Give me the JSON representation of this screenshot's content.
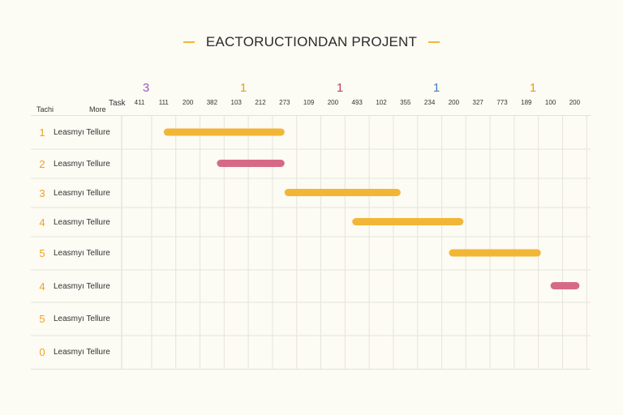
{
  "title": "EACTORUCTIONDAN PROJENT",
  "header": {
    "task": "Tachi",
    "more": "More",
    "task2": "Task"
  },
  "markers": [
    {
      "text": "3",
      "color": "#9a58c8"
    },
    {
      "text": "1",
      "color": "#e0a21a"
    },
    {
      "text": "1",
      "color": "#b8436d"
    },
    {
      "text": "1",
      "color": "#3f7fc0"
    },
    {
      "text": "1",
      "color": "#e0a21a"
    }
  ],
  "ticks": [
    "411",
    "111",
    "200",
    "382",
    "103",
    "212",
    "273",
    "109",
    "200",
    "493",
    "102",
    "355",
    "234",
    "200",
    "327",
    "773",
    "189",
    "100",
    "200"
  ],
  "colors": {
    "gold": "#f2b636",
    "pink": "#d66a86",
    "grid": "#e6e4da"
  },
  "chart_data": {
    "type": "bar",
    "title": "EACTORUCTIONDAN PROJENT",
    "x_tick_labels": [
      "411",
      "111",
      "200",
      "382",
      "103",
      "212",
      "273",
      "109",
      "200",
      "493",
      "102",
      "355",
      "234",
      "200",
      "327",
      "773",
      "189",
      "100",
      "200"
    ],
    "tasks": [
      {
        "num": "1",
        "label": "Leasmyı Tellure",
        "start": 1.0,
        "end": 6.0,
        "color": "gold"
      },
      {
        "num": "2",
        "label": "Leasmyı Tellure",
        "start": 3.2,
        "end": 6.0,
        "color": "pink"
      },
      {
        "num": "3",
        "label": "Leasmyı Tellure",
        "start": 6.0,
        "end": 10.8,
        "color": "gold"
      },
      {
        "num": "4",
        "label": "Leasmyı Tellure",
        "start": 8.8,
        "end": 13.4,
        "color": "gold"
      },
      {
        "num": "5",
        "label": "Leasmyı Tellure",
        "start": 12.8,
        "end": 16.6,
        "color": "gold"
      },
      {
        "num": "4",
        "label": "Leasmyı Tellure",
        "start": 17.0,
        "end": 18.2,
        "color": "pink"
      },
      {
        "num": "5",
        "label": "Leasmyı Tellure",
        "start": null,
        "end": null,
        "color": "gold"
      },
      {
        "num": "0",
        "label": "Leasmyı Tellure",
        "start": null,
        "end": null,
        "color": "gold"
      }
    ]
  }
}
